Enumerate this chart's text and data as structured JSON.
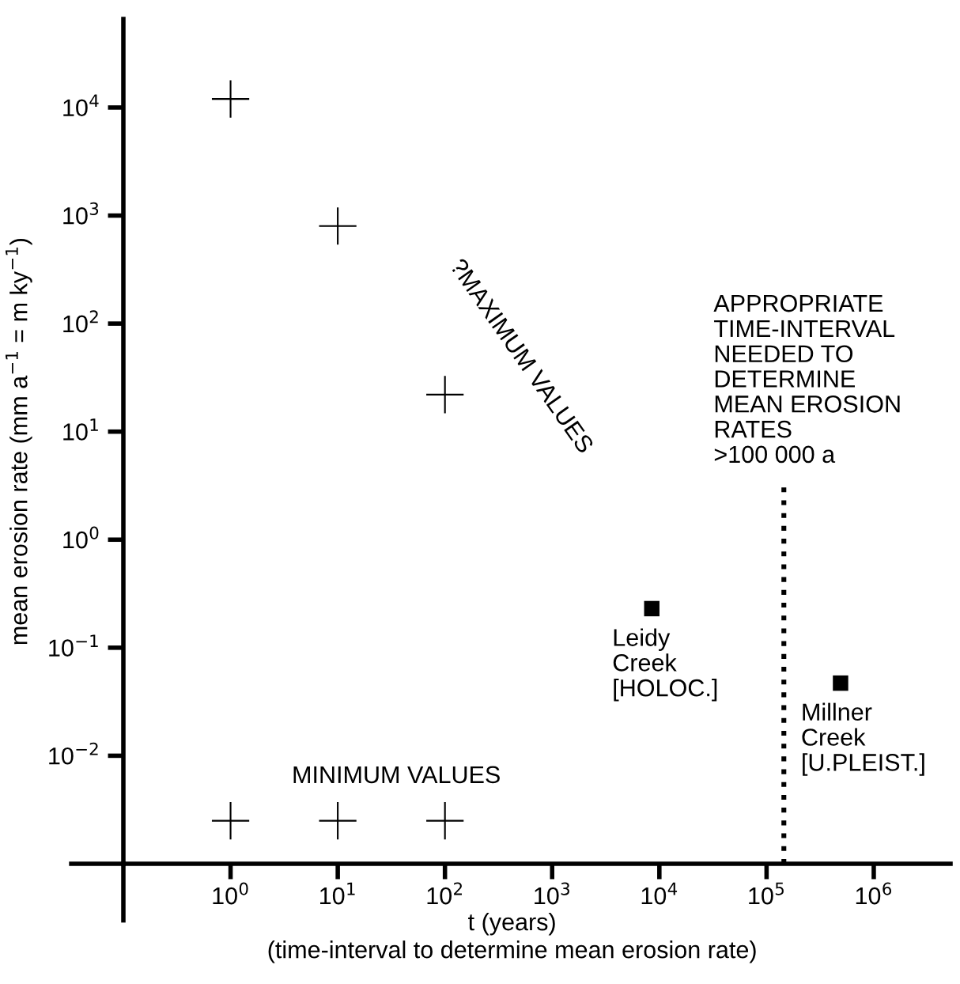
{
  "chart_data": {
    "type": "scatter",
    "ylabel": "mean erosion rate (mm a$^{−1}$ = m ky$^{−1}$)",
    "xlabel": "t (years)\n(time-interval to determine mean erosion rate)",
    "log": "xy",
    "xlim": [
      0.1,
      5200000
    ],
    "ylim": [
      0.001,
      66000
    ],
    "xticks": [
      {
        "value": 1,
        "label": "10$^{0}$"
      },
      {
        "value": 10,
        "label": "10$^{1}$"
      },
      {
        "value": 100,
        "label": "10$^{2}$"
      },
      {
        "value": 1000,
        "label": "10$^{3}$"
      },
      {
        "value": 10000,
        "label": "10$^{4}$"
      },
      {
        "value": 100000,
        "label": "10$^{5}$"
      },
      {
        "value": 1000000,
        "label": "10$^{6}$"
      }
    ],
    "yticks": [
      {
        "value": 0.01,
        "label": "10$^{−2}$"
      },
      {
        "value": 0.1,
        "label": "10$^{−1}$"
      },
      {
        "value": 1,
        "label": "10$^{0}$"
      },
      {
        "value": 10,
        "label": "10$^{1}$"
      },
      {
        "value": 100,
        "label": "10$^{2}$"
      },
      {
        "value": 1000,
        "label": "10$^{3}$"
      },
      {
        "value": 10000,
        "label": "10$^{4}$"
      }
    ],
    "grid": false,
    "series": [
      {
        "marker": "cross",
        "color": "#000000",
        "x": [
          1,
          10,
          100
        ],
        "values": [
          12000,
          800,
          22
        ]
      },
      {
        "marker": "cross",
        "color": "#000000",
        "x": [
          1,
          10,
          100
        ],
        "values": [
          0.0025,
          0.0025,
          0.0025
        ]
      },
      {
        "marker": "square",
        "color": "#000000",
        "x": [
          8500,
          490000
        ],
        "values": [
          0.23,
          0.047
        ]
      },
      {
        "type": "line",
        "line_style": "dotted",
        "color": "#000000",
        "x": [
          145000,
          145000
        ],
        "values": [
          0.001,
          3.5
        ]
      }
    ],
    "annotations": [
      "?MAXIMUM VALUES",
      "MINIMUM VALUES",
      {
        "text": "Leidy\nCreek\n[HOLOC.]",
        "x": 8500,
        "y": 0.23
      },
      {
        "text": "Millner\nCreek\n[U.PLEIST.]",
        "x": 490000,
        "y": 0.047
      },
      {
        "text": "APPROPRIATE\nTIME-INTERVAL\nNEEDED TO\nDETERMINE\nMEAN EROSION\nRATES\n>100 000 a",
        "x": 145000,
        "y": 3.5
      }
    ]
  }
}
